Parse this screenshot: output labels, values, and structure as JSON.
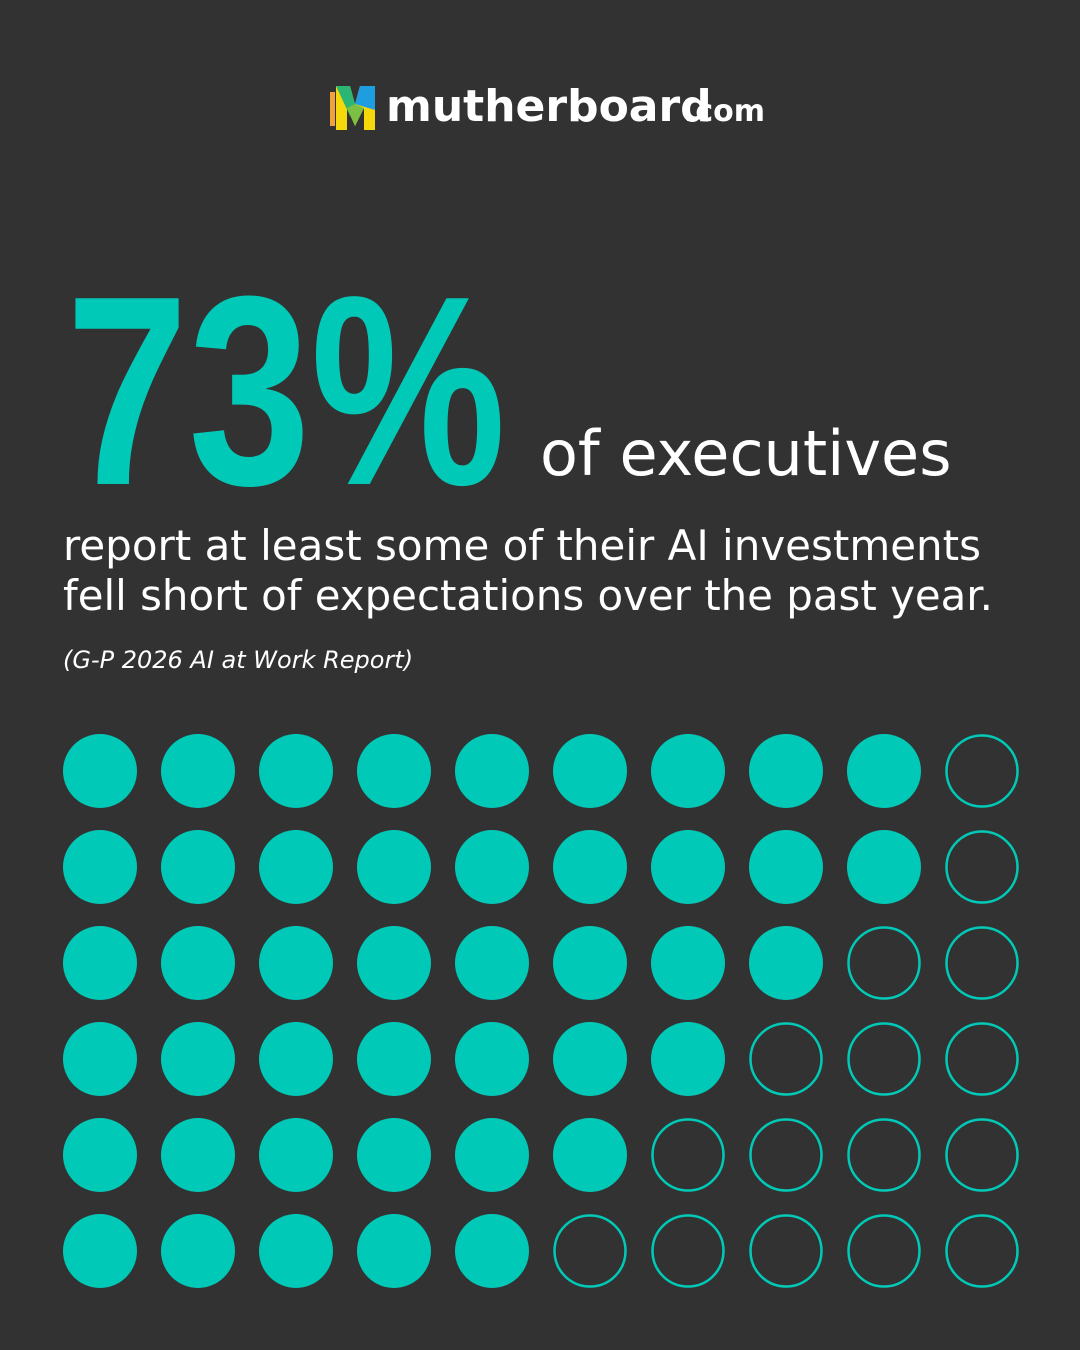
{
  "logo": {
    "name": "mutherboard",
    "suffix": ".com"
  },
  "headline": {
    "stat": "73%",
    "subject": "of executives"
  },
  "body": [
    "report at least some of their AI investments",
    "fell short of expectations over the past year."
  ],
  "source": "(G-P 2026 AI at Work Report)",
  "dot_grid": {
    "columns": 10,
    "rows_filled": [
      9,
      9,
      8,
      7,
      6,
      5
    ],
    "color": "#00c9b7"
  }
}
